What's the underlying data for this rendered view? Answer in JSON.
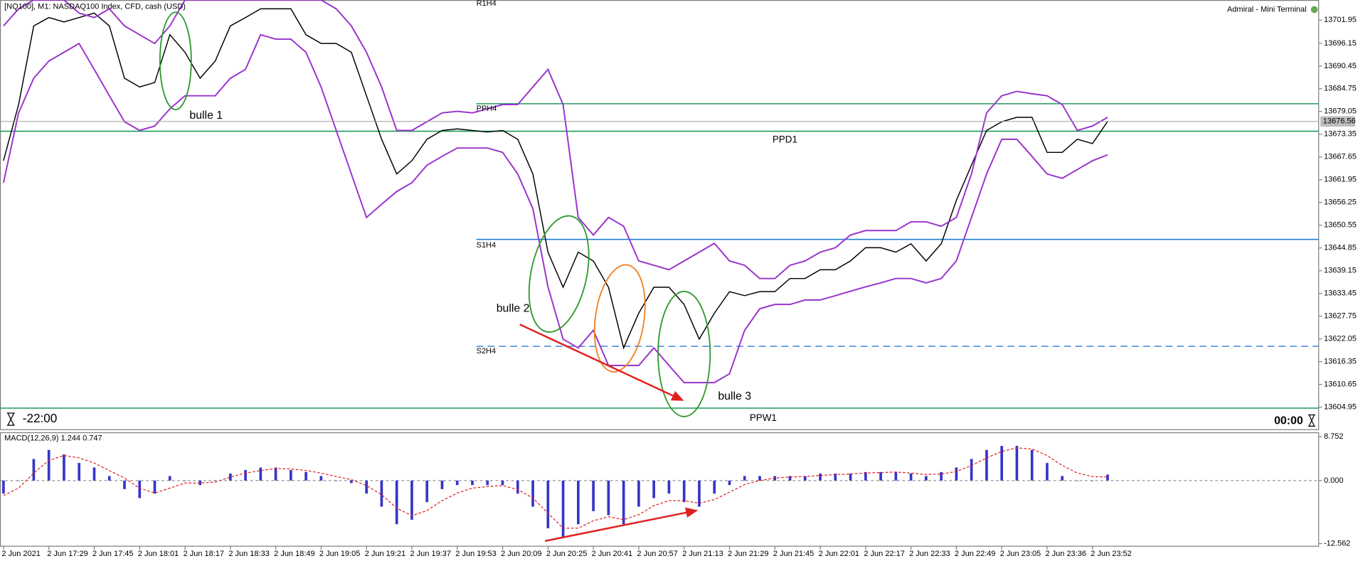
{
  "chart_data": [
    {
      "type": "line",
      "title": "[NQ100], M1: NASDAQ100 Index, CFD, cash (USD)",
      "terminal": "Admiral - Mini Terminal",
      "timer_left": "-22:00",
      "timer_right": "00:00",
      "categories": [
        "2 Jun 2021",
        null,
        null,
        "2 Jun 17:29",
        null,
        null,
        "2 Jun 17:45",
        null,
        null,
        "2 Jun 18:01",
        null,
        null,
        "2 Jun 18:17",
        null,
        null,
        "2 Jun 18:33",
        null,
        null,
        "2 Jun 18:49",
        null,
        null,
        "2 Jun 19:05",
        null,
        null,
        "2 Jun 19:21",
        null,
        null,
        "2 Jun 19:37",
        null,
        null,
        "2 Jun 19:53",
        null,
        null,
        "2 Jun 20:09",
        null,
        null,
        "2 Jun 20:25",
        null,
        null,
        "2 Jun 20:41",
        null,
        null,
        "2 Jun 20:57",
        null,
        null,
        "2 Jun 21:13",
        null,
        null,
        "2 Jun 21:29",
        null,
        null,
        "2 Jun 21:45",
        null,
        null,
        "2 Jun 22:01",
        null,
        null,
        "2 Jun 22:17",
        null,
        null,
        "2 Jun 22:33",
        null,
        null,
        "2 Jun 22:49",
        null,
        null,
        "2 Jun 23:05",
        null,
        null,
        "2 Jun 23:36",
        null,
        null,
        "2 Jun 23:52",
        null
      ],
      "series": [
        {
          "color": "#000000",
          "values": [
            13666.7,
            13680.8,
            13700.5,
            13702.6,
            13701.5,
            13702.6,
            13703.7,
            13700.5,
            13687.4,
            13685.2,
            13686.3,
            13698.3,
            13693.9,
            13687.4,
            13691.7,
            13700.5,
            13702.6,
            13704.8,
            13704.8,
            13704.8,
            13698.3,
            13696.1,
            13696.1,
            13693.9,
            13683.0,
            13672.1,
            13663.4,
            13666.7,
            13672.1,
            13674.3,
            13674.7,
            13674.3,
            13673.9,
            13674.3,
            13672.1,
            13663.4,
            13643.8,
            13635.0,
            13643.8,
            13641.6,
            13635.0,
            13619.8,
            13628.5,
            13635.0,
            13635.0,
            13630.7,
            13622.0,
            13628.5,
            13633.9,
            13632.9,
            13633.9,
            13633.9,
            13637.2,
            13637.2,
            13639.4,
            13639.4,
            13641.6,
            13644.9,
            13644.9,
            13643.8,
            13645.9,
            13641.6,
            13645.9,
            13656.8,
            13665.6,
            13674.3,
            13676.5,
            13677.6,
            13677.6,
            13668.8,
            13668.8,
            13672.1,
            13671.0,
            13676.56
          ]
        },
        {
          "color": "#9932cc",
          "values": [
            13700.5,
            13704.8,
            13707,
            13707,
            13707,
            13703.7,
            13702.6,
            13704.8,
            13700.5,
            13698.3,
            13696.1,
            13700.5,
            13707,
            13707,
            13707,
            13707,
            13707,
            13707,
            13707,
            13707,
            13707,
            13707,
            13704.8,
            13700.5,
            13693.9,
            13685.2,
            13674.3,
            13674.3,
            13676.5,
            13678.7,
            13679.1,
            13678.7,
            13679.7,
            13680.8,
            13680.8,
            13685.2,
            13689.6,
            13680.8,
            13652.5,
            13648.1,
            13652.5,
            13650.3,
            13641.6,
            13640.5,
            13639.4,
            13641.6,
            13643.8,
            13646.0,
            13641.6,
            13640.5,
            13637.2,
            13637.2,
            13640.5,
            13641.6,
            13643.8,
            13644.9,
            13648.1,
            13649.2,
            13649.2,
            13649.2,
            13651.4,
            13651.4,
            13650.3,
            13652.5,
            13663.4,
            13678.7,
            13683.0,
            13684.1,
            13683.5,
            13683.0,
            13680.8,
            13674.3,
            13675.4,
            13677.6
          ]
        },
        {
          "color": "#9932cc",
          "values": [
            13661.2,
            13678.7,
            13687.4,
            13691.7,
            13693.9,
            13696.1,
            13689.6,
            13683.0,
            13676.5,
            13674.3,
            13675.4,
            13679.7,
            13683.0,
            13683.0,
            13683.0,
            13687.4,
            13689.6,
            13698.3,
            13697.2,
            13697.2,
            13693.9,
            13685.2,
            13674.3,
            13663.4,
            13652.5,
            13655.8,
            13659.0,
            13661.2,
            13665.6,
            13667.8,
            13669.9,
            13669.9,
            13669.9,
            13668.8,
            13663.4,
            13654.7,
            13635.1,
            13622.0,
            13619.8,
            13624.2,
            13615.4,
            13615.4,
            13615.4,
            13619.8,
            13615.4,
            13611.1,
            13611.1,
            13611.1,
            13613.3,
            13624.2,
            13629.6,
            13630.7,
            13630.7,
            13631.8,
            13631.8,
            13632.9,
            13634.0,
            13635.1,
            13636.1,
            13637.2,
            13637.2,
            13636.1,
            13637.2,
            13641.6,
            13652.5,
            13663.4,
            13672.1,
            13672.1,
            13667.8,
            13663.4,
            13662.3,
            13664.5,
            13666.7,
            13668.2
          ]
        }
      ],
      "levels": [
        {
          "label": "R1H4",
          "value": 13707.2,
          "color": "#e05030",
          "style": "solid"
        },
        {
          "label": "PPH4",
          "value": 13681.0,
          "color": "#1e9c5a",
          "style": "solid"
        },
        {
          "label": "PPD1",
          "value": 13674.1,
          "color": "#1e9c5a",
          "style": "solid"
        },
        {
          "label": "S1H4",
          "value": 13647.0,
          "color": "#1e7fd8",
          "style": "solid"
        },
        {
          "label": "S2H4",
          "value": 13620.2,
          "color": "#4f8ede",
          "style": "dashed"
        },
        {
          "label": "PPW1",
          "value": 13604.7,
          "color": "#1e9c5a",
          "style": "solid"
        }
      ],
      "annotations": [
        "bulle 1",
        "bulle 2",
        "bulle 3"
      ],
      "annotation_color": "#2e9b2e",
      "ylim": [
        13599.3,
        13707.0
      ],
      "yticks": [
        13701.95,
        13696.15,
        13690.45,
        13684.75,
        13679.05,
        13673.35,
        13667.65,
        13661.95,
        13656.25,
        13650.55,
        13644.85,
        13639.15,
        13633.45,
        13627.75,
        13622.05,
        13616.35,
        13610.65,
        13604.95
      ],
      "grid": false
    },
    {
      "type": "macd",
      "title": "MACD(12,26,9) 1.244 0.747",
      "series": [
        {
          "kind": "bar",
          "color": "#3535c8",
          "values": [
            -2.6,
            0,
            4.3,
            6.1,
            5.2,
            3.5,
            2.6,
            0.9,
            -1.7,
            -3.5,
            -2.6,
            0.9,
            0,
            -0.9,
            0,
            1.4,
            2.1,
            2.6,
            2.6,
            2.1,
            1.7,
            0.9,
            0,
            -0.5,
            -2.6,
            -5.2,
            -8.7,
            -7.8,
            -4.3,
            -1.7,
            -0.9,
            -0.9,
            -0.9,
            -0.9,
            -2.6,
            -5.2,
            -9.5,
            -11.3,
            -8.7,
            -6.1,
            -6.9,
            -8.7,
            -5.2,
            -3.5,
            -2.6,
            -4.3,
            -5.2,
            -2.6,
            -0.9,
            0.9,
            0.9,
            0.9,
            0.9,
            0.9,
            1.4,
            1.4,
            1.4,
            1.7,
            1.7,
            1.7,
            1.4,
            0.9,
            1.7,
            2.6,
            4.3,
            6.1,
            6.9,
            6.9,
            6.1,
            3.5,
            0.9,
            0,
            0,
            1.2
          ]
        },
        {
          "kind": "line",
          "style": "dashed",
          "color": "#e02020",
          "values": [
            -3,
            -1.5,
            1.5,
            4,
            5,
            4.5,
            3.5,
            2,
            0.5,
            -1.5,
            -2.5,
            -1.5,
            -0.5,
            -0.5,
            -0.3,
            0.7,
            1.5,
            2,
            2.4,
            2.3,
            2,
            1.5,
            0.8,
            0.2,
            -1,
            -2.8,
            -5.5,
            -7,
            -6,
            -4,
            -2.5,
            -1.5,
            -1.2,
            -1,
            -1.8,
            -3.5,
            -6.5,
            -9.5,
            -9.5,
            -8,
            -7.2,
            -7.8,
            -6.8,
            -5,
            -4,
            -4,
            -4.5,
            -3.8,
            -2.3,
            -0.8,
            0,
            0.5,
            0.7,
            0.8,
            1,
            1.2,
            1.3,
            1.5,
            1.6,
            1.7,
            1.5,
            1.2,
            1.3,
            1.8,
            3,
            4.5,
            5.8,
            6.5,
            6.3,
            5,
            3,
            1.5,
            0.8,
            0.7
          ]
        }
      ],
      "ylim": [
        -12.562,
        8.752
      ],
      "yticks": [
        8.752,
        {
          "value": 0,
          "label": "0.000"
        },
        -12.562
      ]
    }
  ]
}
